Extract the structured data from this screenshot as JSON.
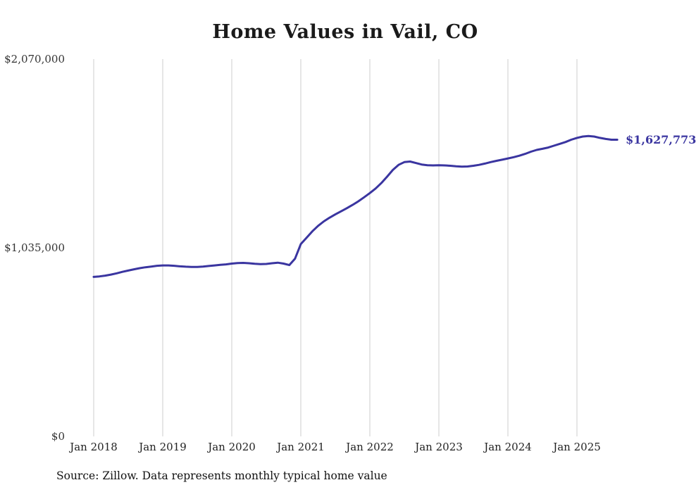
{
  "title": "Home Values in Vail, CO",
  "source_note": "Source: Zillow. Data represents monthly typical home value",
  "end_label": "$1,627,773",
  "colors": {
    "line": "#3a35a0",
    "grid": "#cccccc",
    "end_label": "#3a35a0"
  },
  "chart_data": {
    "type": "line",
    "title": "Home Values in Vail, CO",
    "xlabel": "",
    "ylabel": "",
    "ylim": [
      0,
      2070000
    ],
    "grid": "vertical-only",
    "legend": "none",
    "y_ticks": [
      {
        "value": 0,
        "label": "$0"
      },
      {
        "value": 1035000,
        "label": "$1,035,000"
      },
      {
        "value": 2070000,
        "label": "$2,070,000"
      }
    ],
    "x_ticks": [
      "Jan 2018",
      "Jan 2019",
      "Jan 2020",
      "Jan 2021",
      "Jan 2022",
      "Jan 2023",
      "Jan 2024",
      "Jan 2025"
    ],
    "end_value": 1627773,
    "series": [
      {
        "name": "Monthly typical home value",
        "x": [
          "2018-01",
          "2018-02",
          "2018-03",
          "2018-04",
          "2018-05",
          "2018-06",
          "2018-07",
          "2018-08",
          "2018-09",
          "2018-10",
          "2018-11",
          "2018-12",
          "2019-01",
          "2019-02",
          "2019-03",
          "2019-04",
          "2019-05",
          "2019-06",
          "2019-07",
          "2019-08",
          "2019-09",
          "2019-10",
          "2019-11",
          "2019-12",
          "2020-01",
          "2020-02",
          "2020-03",
          "2020-04",
          "2020-05",
          "2020-06",
          "2020-07",
          "2020-08",
          "2020-09",
          "2020-10",
          "2020-11",
          "2020-12",
          "2021-01",
          "2021-02",
          "2021-03",
          "2021-04",
          "2021-05",
          "2021-06",
          "2021-07",
          "2021-08",
          "2021-09",
          "2021-10",
          "2021-11",
          "2021-12",
          "2022-01",
          "2022-02",
          "2022-03",
          "2022-04",
          "2022-05",
          "2022-06",
          "2022-07",
          "2022-08",
          "2022-09",
          "2022-10",
          "2022-11",
          "2022-12",
          "2023-01",
          "2023-02",
          "2023-03",
          "2023-04",
          "2023-05",
          "2023-06",
          "2023-07",
          "2023-08",
          "2023-09",
          "2023-10",
          "2023-11",
          "2023-12",
          "2024-01",
          "2024-02",
          "2024-03",
          "2024-04",
          "2024-05",
          "2024-06",
          "2024-07",
          "2024-08",
          "2024-09",
          "2024-10",
          "2024-11",
          "2024-12",
          "2025-01",
          "2025-02",
          "2025-03",
          "2025-04",
          "2025-05",
          "2025-06",
          "2025-07",
          "2025-08"
        ],
        "values": [
          875000,
          878000,
          882000,
          888000,
          895000,
          903000,
          910000,
          917000,
          923000,
          928000,
          932000,
          936000,
          938000,
          938000,
          936000,
          933000,
          931000,
          930000,
          930000,
          932000,
          935000,
          938000,
          941000,
          944000,
          948000,
          951000,
          952000,
          950000,
          947000,
          945000,
          946000,
          950000,
          953000,
          948000,
          940000,
          975000,
          1055000,
          1090000,
          1125000,
          1155000,
          1180000,
          1200000,
          1218000,
          1235000,
          1252000,
          1270000,
          1290000,
          1312000,
          1335000,
          1360000,
          1390000,
          1425000,
          1462000,
          1490000,
          1505000,
          1508000,
          1500000,
          1492000,
          1488000,
          1487000,
          1488000,
          1487000,
          1485000,
          1482000,
          1480000,
          1481000,
          1485000,
          1490000,
          1497000,
          1505000,
          1512000,
          1518000,
          1525000,
          1532000,
          1540000,
          1550000,
          1562000,
          1572000,
          1578000,
          1585000,
          1595000,
          1605000,
          1615000,
          1628000,
          1638000,
          1645000,
          1648000,
          1645000,
          1638000,
          1632000,
          1628000,
          1627773
        ]
      }
    ]
  }
}
